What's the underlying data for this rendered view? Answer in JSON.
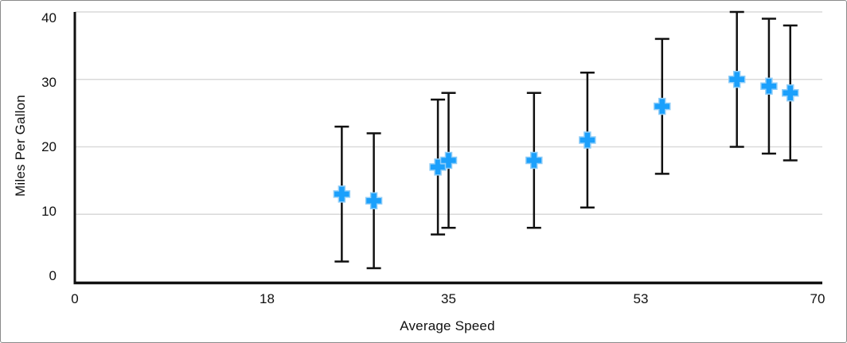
{
  "window": {
    "kind": "chart-figure",
    "background": "#FFFFFF",
    "border_color": "#8A8A8A"
  },
  "colors": {
    "marker_fill": "#1BA0FC",
    "marker_stroke": "#8FCDF8",
    "error_bar": "#111111",
    "axis": "#111111",
    "gridline": "#D9D9D9",
    "text": "#111111"
  },
  "chart_data": {
    "type": "scatter",
    "title": "",
    "xlabel": "Average Speed",
    "ylabel": "Miles Per Gallon",
    "xlim": [
      0,
      70
    ],
    "ylim": [
      0,
      40
    ],
    "x_ticks": [
      0,
      18,
      35,
      53,
      70
    ],
    "y_ticks": [
      0,
      10,
      20,
      30,
      40
    ],
    "grid": "horizontal",
    "legend": "none",
    "marker": "plus",
    "error_bars": {
      "direction": "both",
      "type": "fixed",
      "magnitude": 10
    },
    "points": [
      {
        "x": 25,
        "y": 13,
        "err_low": 3,
        "err_high": 23
      },
      {
        "x": 28,
        "y": 12,
        "err_low": 2,
        "err_high": 22
      },
      {
        "x": 34,
        "y": 17,
        "err_low": 7,
        "err_high": 27
      },
      {
        "x": 35,
        "y": 18,
        "err_low": 8,
        "err_high": 28
      },
      {
        "x": 43,
        "y": 18,
        "err_low": 8,
        "err_high": 28
      },
      {
        "x": 48,
        "y": 21,
        "err_low": 11,
        "err_high": 31
      },
      {
        "x": 55,
        "y": 26,
        "err_low": 16,
        "err_high": 36
      },
      {
        "x": 62,
        "y": 30,
        "err_low": 20,
        "err_high": 40
      },
      {
        "x": 65,
        "y": 29,
        "err_low": 19,
        "err_high": 39
      },
      {
        "x": 67,
        "y": 28,
        "err_low": 18,
        "err_high": 38
      }
    ]
  }
}
